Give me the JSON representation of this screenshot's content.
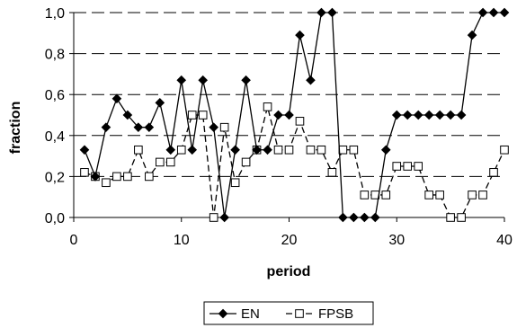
{
  "chart_data": {
    "type": "line",
    "xlabel": "period",
    "ylabel": "fraction",
    "xlim": [
      0,
      40
    ],
    "ylim": [
      0,
      1
    ],
    "x_ticks": [
      0,
      10,
      20,
      30,
      40
    ],
    "y_ticks": [
      0,
      0.2,
      0.4,
      0.6,
      0.8,
      1.0
    ],
    "x_tick_labels": [
      "0",
      "10",
      "20",
      "30",
      "40"
    ],
    "y_tick_labels": [
      "0,0",
      "0,2",
      "0,4",
      "0,6",
      "0,8",
      "1,0"
    ],
    "grid": "horizontal dashed",
    "legend_position": "bottom",
    "series": [
      {
        "name": "EN",
        "line_style": "solid",
        "marker": "filled-diamond",
        "color": "#000000",
        "x": [
          1,
          2,
          3,
          4,
          5,
          6,
          7,
          8,
          9,
          10,
          11,
          12,
          13,
          14,
          15,
          16,
          17,
          18,
          19,
          20,
          21,
          22,
          23,
          24,
          25,
          26,
          27,
          28,
          29,
          30,
          31,
          32,
          33,
          34,
          35,
          36,
          37,
          38,
          39,
          40
        ],
        "y": [
          0.33,
          0.2,
          0.44,
          0.58,
          0.5,
          0.44,
          0.44,
          0.56,
          0.33,
          0.67,
          0.33,
          0.67,
          0.44,
          0.0,
          0.33,
          0.67,
          0.33,
          0.33,
          0.5,
          0.5,
          0.89,
          0.67,
          1.0,
          1.0,
          0.0,
          0.0,
          0.0,
          0.0,
          0.33,
          0.5,
          0.5,
          0.5,
          0.5,
          0.5,
          0.5,
          0.5,
          0.89,
          1.0,
          1.0,
          1.0
        ]
      },
      {
        "name": "FPSB",
        "line_style": "dashed",
        "marker": "open-square",
        "color": "#000000",
        "x": [
          1,
          2,
          3,
          4,
          5,
          6,
          7,
          8,
          9,
          10,
          11,
          12,
          13,
          14,
          15,
          16,
          17,
          18,
          19,
          20,
          21,
          22,
          23,
          24,
          25,
          26,
          27,
          28,
          29,
          30,
          31,
          32,
          33,
          34,
          35,
          36,
          37,
          38,
          39,
          40
        ],
        "y": [
          0.22,
          0.2,
          0.17,
          0.2,
          0.2,
          0.33,
          0.2,
          0.27,
          0.27,
          0.33,
          0.5,
          0.5,
          0.0,
          0.44,
          0.17,
          0.27,
          0.33,
          0.54,
          0.33,
          0.33,
          0.47,
          0.33,
          0.33,
          0.22,
          0.33,
          0.33,
          0.11,
          0.11,
          0.11,
          0.25,
          0.25,
          0.25,
          0.11,
          0.11,
          0.0,
          0.0,
          0.11,
          0.11,
          0.22,
          0.33
        ]
      }
    ]
  }
}
